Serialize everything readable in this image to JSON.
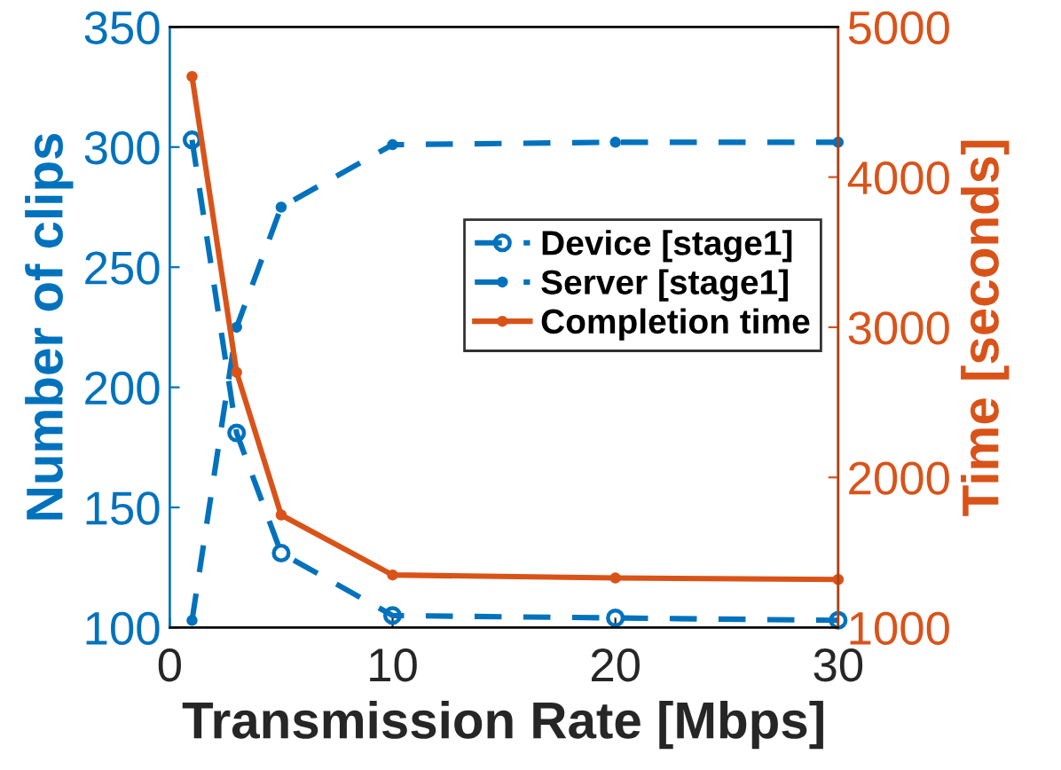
{
  "chart_data": {
    "type": "line",
    "xlabel": "Transmission Rate [Mbps]",
    "ylabel": "Number of clips",
    "y2label": "Time [seconds]",
    "x": [
      1,
      3,
      5,
      10,
      20,
      30
    ],
    "series": [
      {
        "name": "Device [stage1]",
        "color": "#0072bd",
        "values": [
          303,
          181,
          131,
          105,
          104,
          103
        ],
        "marker": "circle",
        "line_style": "dashed"
      },
      {
        "name": "Server [stage1]",
        "color": "#0072bd",
        "values": [
          103,
          225,
          275,
          301,
          302,
          302
        ],
        "marker": "point",
        "line_style": "dashed"
      },
      {
        "name": "Completion time",
        "color": "#d95319",
        "values": [
          4670,
          2700,
          1750,
          1350,
          1330,
          1320
        ],
        "marker": "point",
        "line_style": "solid",
        "axis": "y2"
      }
    ],
    "xlim": [
      0,
      30
    ],
    "xticks": [
      0,
      10,
      20,
      30
    ],
    "ylim": [
      100,
      350
    ],
    "yticks": [
      100,
      150,
      200,
      250,
      300,
      350
    ],
    "y2lim": [
      1000,
      5000
    ],
    "y2ticks": [
      1000,
      2000,
      3000,
      4000,
      5000
    ],
    "grid": false,
    "legend": "right"
  }
}
